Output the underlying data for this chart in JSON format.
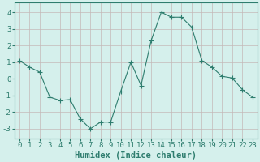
{
  "x": [
    0,
    1,
    2,
    3,
    4,
    5,
    6,
    7,
    8,
    9,
    10,
    11,
    12,
    13,
    14,
    15,
    16,
    17,
    18,
    19,
    20,
    21,
    22,
    23
  ],
  "y": [
    1.1,
    0.7,
    0.4,
    -1.1,
    -1.3,
    -1.25,
    -2.4,
    -3.0,
    -2.6,
    -2.6,
    -0.75,
    1.0,
    -0.4,
    2.3,
    4.0,
    3.7,
    3.7,
    3.1,
    1.1,
    0.7,
    0.15,
    0.05,
    -0.65,
    -1.1
  ],
  "line_color": "#2e7d6e",
  "marker": "+",
  "marker_size": 4,
  "bg_color": "#d5f0ec",
  "grid_color": "#c4b8b8",
  "xlabel": "Humidex (Indice chaleur)",
  "ylim": [
    -3.6,
    4.6
  ],
  "xlim": [
    -0.5,
    23.5
  ],
  "yticks": [
    -3,
    -2,
    -1,
    0,
    1,
    2,
    3,
    4
  ],
  "xticks": [
    0,
    1,
    2,
    3,
    4,
    5,
    6,
    7,
    8,
    9,
    10,
    11,
    12,
    13,
    14,
    15,
    16,
    17,
    18,
    19,
    20,
    21,
    22,
    23
  ],
  "tick_color": "#2e7d6e",
  "label_color": "#2e7d6e",
  "xlabel_fontsize": 7.5,
  "tick_fontsize": 6.5
}
